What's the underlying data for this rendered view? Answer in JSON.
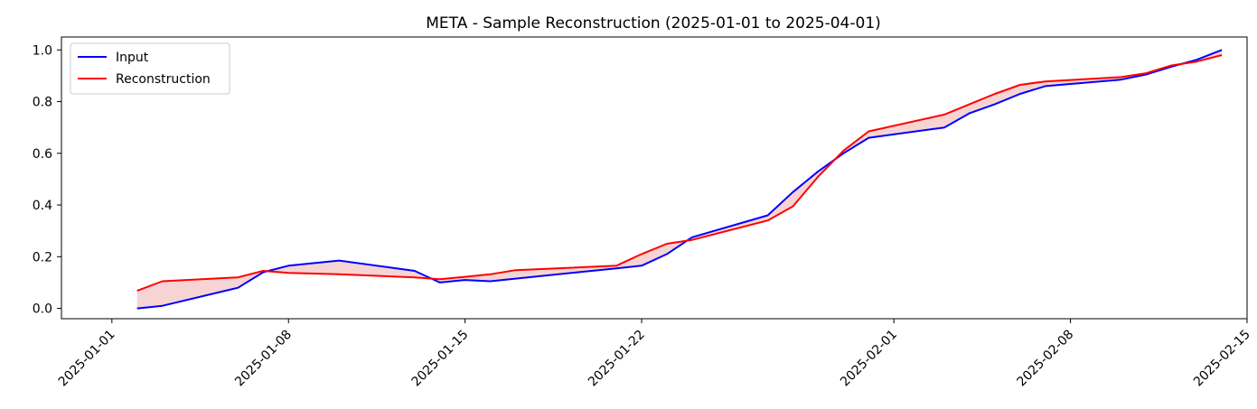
{
  "chart_data": {
    "type": "line",
    "title": "META - Sample Reconstruction (2025-01-01 to 2025-04-01)",
    "xlabel": "",
    "ylabel": "",
    "xlim": [
      "2024-12-30",
      "2025-02-15"
    ],
    "ylim": [
      -0.04,
      1.05
    ],
    "xticks": [
      "2025-01-01",
      "2025-01-08",
      "2025-01-15",
      "2025-01-22",
      "2025-02-01",
      "2025-02-08",
      "2025-02-15"
    ],
    "yticks": [
      0.0,
      0.2,
      0.4,
      0.6,
      0.8,
      1.0
    ],
    "ytick_labels": [
      "0.0",
      "0.2",
      "0.4",
      "0.6",
      "0.8",
      "1.0"
    ],
    "grid": false,
    "legend_position": "top-left",
    "fill_between": {
      "color": "#f4c2c2",
      "between": [
        "Input",
        "Reconstruction"
      ]
    },
    "x": [
      "2025-01-02",
      "2025-01-03",
      "2025-01-06",
      "2025-01-07",
      "2025-01-08",
      "2025-01-10",
      "2025-01-13",
      "2025-01-14",
      "2025-01-15",
      "2025-01-16",
      "2025-01-17",
      "2025-01-21",
      "2025-01-22",
      "2025-01-23",
      "2025-01-24",
      "2025-01-27",
      "2025-01-28",
      "2025-01-29",
      "2025-01-30",
      "2025-01-31",
      "2025-02-03",
      "2025-02-04",
      "2025-02-05",
      "2025-02-06",
      "2025-02-07",
      "2025-02-10",
      "2025-02-11",
      "2025-02-12",
      "2025-02-13",
      "2025-02-14"
    ],
    "series": [
      {
        "name": "Input",
        "color": "#0000ff",
        "values": [
          0.0,
          0.01,
          0.08,
          0.14,
          0.165,
          0.185,
          0.145,
          0.1,
          0.11,
          0.105,
          0.115,
          0.155,
          0.165,
          0.21,
          0.275,
          0.36,
          0.45,
          0.53,
          0.6,
          0.66,
          0.7,
          0.755,
          0.79,
          0.83,
          0.86,
          0.885,
          0.905,
          0.935,
          0.962,
          1.0
        ]
      },
      {
        "name": "Reconstruction",
        "color": "#ff0000",
        "values": [
          0.068,
          0.105,
          0.12,
          0.145,
          0.137,
          0.132,
          0.12,
          0.113,
          0.122,
          0.132,
          0.148,
          0.165,
          0.21,
          0.25,
          0.265,
          0.34,
          0.395,
          0.51,
          0.61,
          0.685,
          0.75,
          0.79,
          0.83,
          0.865,
          0.878,
          0.895,
          0.91,
          0.94,
          0.955,
          0.98
        ]
      }
    ]
  }
}
